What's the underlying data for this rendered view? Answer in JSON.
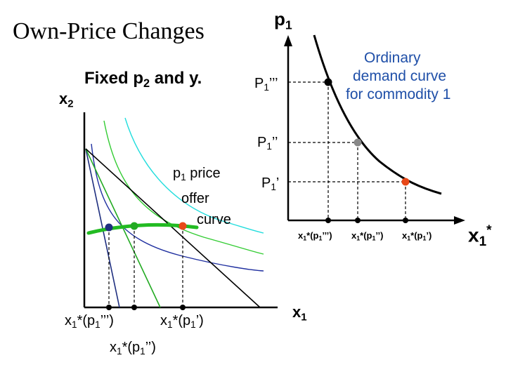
{
  "title": "Own-Price Changes",
  "subtitle": {
    "main": "Fixed p",
    "sub": "2",
    "rest": " and y."
  },
  "left_panel": {
    "y_axis_label": {
      "main": "x",
      "sub": "2"
    },
    "x_axis_label": {
      "main": "x",
      "sub": "1"
    },
    "offer_curve_label": [
      "p",
      "1",
      " price",
      "offer",
      "curve"
    ],
    "x_ticks": [
      {
        "main": "x",
        "sub": "1",
        "rest": "*(p",
        "sub2": "1",
        "rest2": "’’’)"
      },
      {
        "main": "x",
        "sub": "1",
        "rest": "*(p",
        "sub2": "1",
        "rest2": "’’)"
      },
      {
        "main": "x",
        "sub": "1",
        "rest": "*(p",
        "sub2": "1",
        "rest2": "’)"
      }
    ]
  },
  "right_panel": {
    "y_axis_label": {
      "main": "p",
      "sub": "1"
    },
    "x_axis_label": {
      "main": "x",
      "sub": "1",
      "sup": "*"
    },
    "price_labels": [
      {
        "main": "P",
        "sub": "1",
        "rest": "’’’"
      },
      {
        "main": "P",
        "sub": "1",
        "rest": "’’"
      },
      {
        "main": "P",
        "sub": "1",
        "rest": "’"
      }
    ],
    "demand_label": [
      "Ordinary",
      "demand curve",
      "for commodity 1"
    ],
    "x_ticks": [
      {
        "main": "x",
        "sub": "1",
        "rest": "*(p",
        "sub2": "1",
        "rest2": "’’’)"
      },
      {
        "main": "x",
        "sub": "1",
        "rest": "*(p",
        "sub2": "1",
        "rest2": "’’)"
      },
      {
        "main": "x",
        "sub": "1",
        "rest": "*(p",
        "sub2": "1",
        "rest2": "’)"
      }
    ]
  },
  "colors": {
    "axis": "#000000",
    "offer_curve": "#22bb22",
    "point_low": "#1f2f7f",
    "point_mid": "#22aa22",
    "point_high": "#e84818",
    "demand_point_top": "#000000",
    "demand_point_mid": "#888888",
    "demand_point_low": "#e84818",
    "budget_line": "#000000",
    "indiff_dark": "#2030a0",
    "indiff_green": "#33cc33",
    "indiff_cyan": "#22dddd",
    "demand_label": "#1f4fa8"
  }
}
